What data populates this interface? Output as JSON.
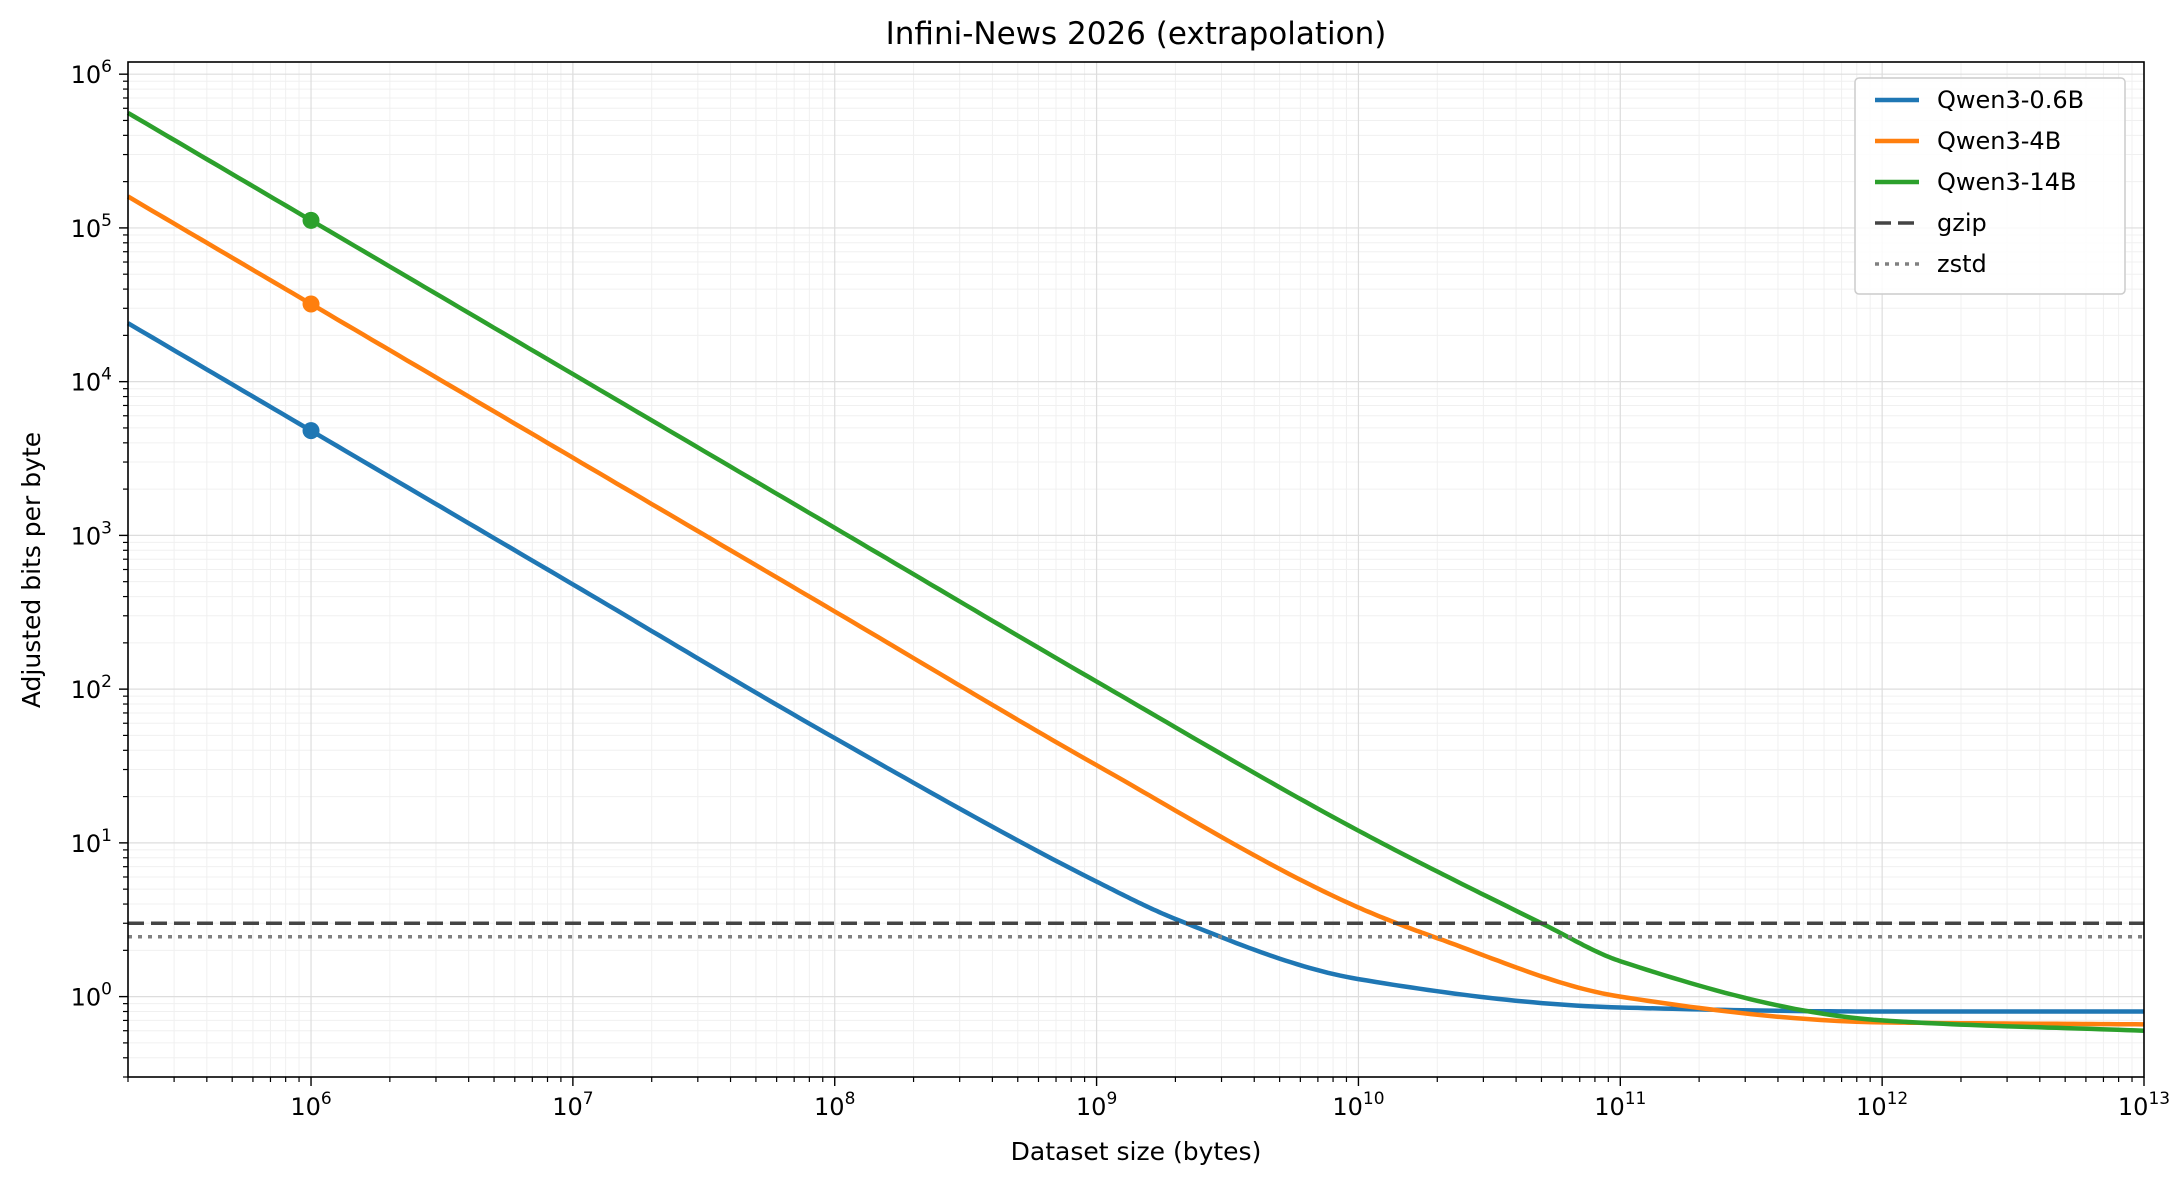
{
  "chart_data": {
    "type": "line",
    "title": "Infini-News 2026 (extrapolation)",
    "xlabel": "Dataset size (bytes)",
    "ylabel": "Adjusted bits per byte",
    "xscale": "log",
    "yscale": "log",
    "xlim": [
      200000,
      10000000000000
    ],
    "ylim": [
      0.3,
      1200000
    ],
    "grid": true,
    "legend_position": "top-right",
    "x_ticks": [
      {
        "base": "10",
        "exp": "6",
        "value": 1000000
      },
      {
        "base": "10",
        "exp": "7",
        "value": 10000000
      },
      {
        "base": "10",
        "exp": "8",
        "value": 100000000
      },
      {
        "base": "10",
        "exp": "9",
        "value": 1000000000
      },
      {
        "base": "10",
        "exp": "10",
        "value": 10000000000
      },
      {
        "base": "10",
        "exp": "11",
        "value": 100000000000
      },
      {
        "base": "10",
        "exp": "12",
        "value": 1000000000000
      },
      {
        "base": "10",
        "exp": "13",
        "value": 10000000000000
      }
    ],
    "y_ticks": [
      {
        "base": "10",
        "exp": "0",
        "value": 1
      },
      {
        "base": "10",
        "exp": "1",
        "value": 10
      },
      {
        "base": "10",
        "exp": "2",
        "value": 100
      },
      {
        "base": "10",
        "exp": "3",
        "value": 1000
      },
      {
        "base": "10",
        "exp": "4",
        "value": 10000
      },
      {
        "base": "10",
        "exp": "5",
        "value": 100000
      },
      {
        "base": "10",
        "exp": "6",
        "value": 1000000
      }
    ],
    "series": [
      {
        "name": "Qwen3-0.6B",
        "color": "#1f77b4",
        "style": "solid",
        "x": [
          200000,
          1000000,
          10000000,
          100000000,
          1000000000,
          2000000000,
          10000000000,
          100000000000,
          1000000000000,
          10000000000000
        ],
        "y": [
          24000,
          4800,
          480,
          48,
          5.6,
          3.2,
          1.3,
          0.85,
          0.8,
          0.8
        ],
        "markers": [
          {
            "x": 1000000,
            "y": 4800
          }
        ]
      },
      {
        "name": "Qwen3-4B",
        "color": "#ff7f0e",
        "style": "solid",
        "x": [
          200000,
          1000000,
          10000000,
          100000000,
          1000000000,
          10000000000,
          20000000000,
          100000000000,
          1000000000000,
          10000000000000
        ],
        "y": [
          160000,
          32000,
          3200,
          320,
          32,
          3.8,
          2.4,
          1.0,
          0.68,
          0.66
        ],
        "markers": [
          {
            "x": 1000000,
            "y": 32000
          }
        ]
      },
      {
        "name": "Qwen3-14B",
        "color": "#2ca02c",
        "style": "solid",
        "x": [
          200000,
          1000000,
          10000000,
          100000000,
          1000000000,
          10000000000,
          50000000000,
          100000000000,
          1000000000000,
          10000000000000
        ],
        "y": [
          560000,
          112000,
          11200,
          1120,
          112,
          12,
          3.0,
          1.7,
          0.7,
          0.6
        ],
        "markers": [
          {
            "x": 1000000,
            "y": 112000
          }
        ]
      },
      {
        "name": "gzip",
        "color": "#444444",
        "style": "dashed",
        "x": [
          200000,
          10000000000000
        ],
        "y": [
          3.0,
          3.0
        ]
      },
      {
        "name": "zstd",
        "color": "#808080",
        "style": "dotted",
        "x": [
          200000,
          10000000000000
        ],
        "y": [
          2.45,
          2.45
        ]
      }
    ]
  }
}
